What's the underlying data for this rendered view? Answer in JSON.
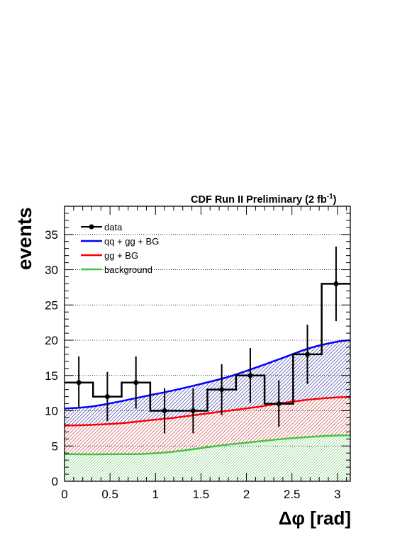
{
  "chart_data": {
    "type": "line",
    "header": "CDF Run II Preliminary (2 fb",
    "header_sup": "-1",
    "header_close": ")",
    "xlabel": "Δφ [rad]",
    "ylabel": "events",
    "xlim": [
      0,
      3.1416
    ],
    "ylim": [
      0,
      39
    ],
    "grid": "horizontal dotted",
    "legend_position": "top-left",
    "x_ticks": [
      {
        "v": 0,
        "label": "0"
      },
      {
        "v": 0.5,
        "label": "0.5"
      },
      {
        "v": 1,
        "label": "1"
      },
      {
        "v": 1.5,
        "label": "1.5"
      },
      {
        "v": 2,
        "label": "2"
      },
      {
        "v": 2.5,
        "label": "2.5"
      },
      {
        "v": 3,
        "label": "3"
      }
    ],
    "y_ticks": [
      {
        "v": 0,
        "label": "0"
      },
      {
        "v": 5,
        "label": "5"
      },
      {
        "v": 10,
        "label": "10"
      },
      {
        "v": 15,
        "label": "15"
      },
      {
        "v": 20,
        "label": "20"
      },
      {
        "v": 25,
        "label": "25"
      },
      {
        "v": 30,
        "label": "30"
      },
      {
        "v": 35,
        "label": "35"
      }
    ],
    "data": {
      "name": "data",
      "color": "#000000",
      "bin_edges": [
        0,
        0.314,
        0.628,
        0.942,
        1.257,
        1.571,
        1.885,
        2.199,
        2.513,
        2.827,
        3.1416
      ],
      "centers": [
        0.157,
        0.471,
        0.785,
        1.1,
        1.414,
        1.728,
        2.042,
        2.356,
        2.67,
        2.985
      ],
      "values": [
        14,
        12,
        14,
        10,
        10,
        13,
        15,
        11,
        18,
        28
      ],
      "errors": [
        3.7,
        3.5,
        3.7,
        3.2,
        3.2,
        3.6,
        3.9,
        3.3,
        4.2,
        5.3
      ]
    },
    "series": [
      {
        "name": "qq + gg + BG",
        "color": "#0000ff",
        "x": [
          0,
          0.3,
          0.6,
          0.9,
          1.2,
          1.5,
          1.8,
          2.1,
          2.4,
          2.7,
          3.0,
          3.1416
        ],
        "y": [
          10.3,
          10.6,
          11.3,
          12.1,
          12.9,
          13.8,
          14.8,
          16.1,
          17.5,
          18.9,
          19.8,
          20.0
        ]
      },
      {
        "name": "gg + BG",
        "color": "#ff0000",
        "x": [
          0,
          0.3,
          0.6,
          0.9,
          1.2,
          1.5,
          1.8,
          2.1,
          2.4,
          2.7,
          3.0,
          3.1416
        ],
        "y": [
          7.9,
          8.0,
          8.2,
          8.6,
          9.0,
          9.5,
          10.0,
          10.5,
          11.1,
          11.6,
          11.9,
          11.9
        ]
      },
      {
        "name": "background",
        "color": "#44c444",
        "x": [
          0,
          0.3,
          0.6,
          0.9,
          1.2,
          1.5,
          1.8,
          2.1,
          2.4,
          2.7,
          3.0,
          3.1416
        ],
        "y": [
          3.85,
          3.82,
          3.84,
          3.9,
          4.2,
          4.7,
          5.2,
          5.6,
          6.0,
          6.3,
          6.5,
          6.5
        ]
      }
    ]
  }
}
